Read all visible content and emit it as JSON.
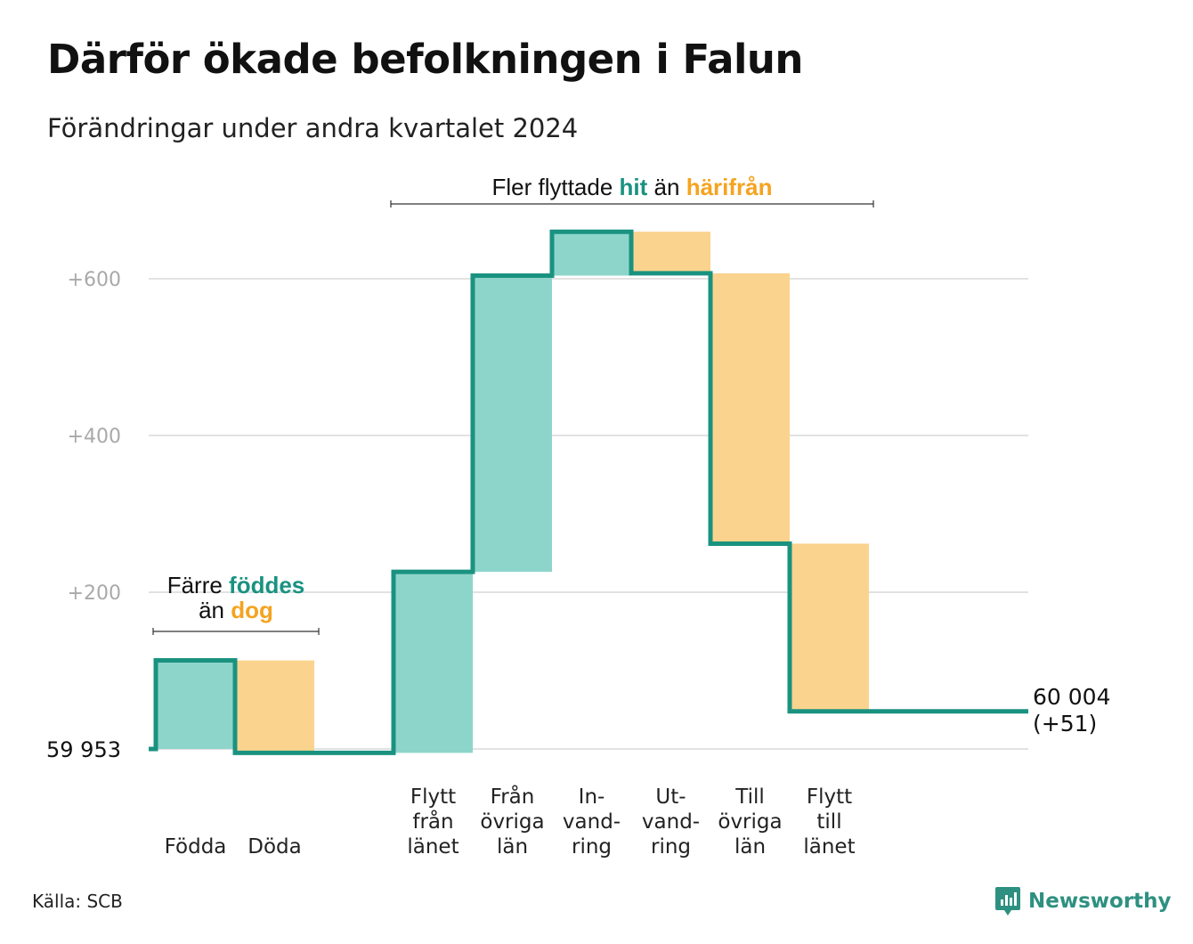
{
  "title": "Därför ökade befolkningen i Falun",
  "subtitle": "Förändringar under andra kvartalet 2024",
  "source": "Källa: SCB",
  "brand": "Newsworthy",
  "colors": {
    "increase_fill": "#8dd5cb",
    "decrease_fill": "#fad48e",
    "line": "#1a9280",
    "increase_text": "#1a9280",
    "decrease_text": "#f5a31f",
    "grid": "#e2e2e2",
    "tick": "#a9a9a9"
  },
  "chart_data": {
    "type": "waterfall",
    "baseline": 59953,
    "baseline_label": "59  953",
    "final": 60004,
    "final_label": "60 004",
    "final_change_label": "(+51)",
    "y_ticks": [
      {
        "value": 200,
        "label": "+200"
      },
      {
        "value": 400,
        "label": "+400"
      },
      {
        "value": 600,
        "label": "+600"
      }
    ],
    "ylim": [
      -20,
      700
    ],
    "grid": true,
    "steps": [
      {
        "category": "Födda",
        "label_lines": [
          "Födda"
        ],
        "change": 113,
        "kind": "increase"
      },
      {
        "category": "Döda",
        "label_lines": [
          "Döda"
        ],
        "change": -118,
        "kind": "decrease"
      },
      {
        "category": "",
        "label_lines": [],
        "change": 0,
        "kind": "gap"
      },
      {
        "category": "Flytt från länet",
        "label_lines": [
          "Flytt",
          "från",
          "länet"
        ],
        "change": 231,
        "kind": "increase"
      },
      {
        "category": "Från övriga län",
        "label_lines": [
          "Från",
          "övriga",
          "län"
        ],
        "change": 378,
        "kind": "increase"
      },
      {
        "category": "Invandring",
        "label_lines": [
          "In-",
          "vand-",
          "ring"
        ],
        "change": 56,
        "kind": "increase"
      },
      {
        "category": "Utvandring",
        "label_lines": [
          "Ut-",
          "vand-",
          "ring"
        ],
        "change": -53,
        "kind": "decrease"
      },
      {
        "category": "Till övriga län",
        "label_lines": [
          "Till",
          "övriga",
          "län"
        ],
        "change": -345,
        "kind": "decrease"
      },
      {
        "category": "Flytt till länet",
        "label_lines": [
          "Flytt",
          "till",
          "länet"
        ],
        "change": -214,
        "kind": "decrease"
      },
      {
        "category": "",
        "label_lines": [],
        "change": 0,
        "kind": "gap"
      }
    ],
    "annotations": [
      {
        "id": "birth",
        "parts_line1": [
          {
            "text": "Färre ",
            "style": "normal"
          },
          {
            "text": "föddes",
            "style": "increase"
          }
        ],
        "parts_line2": [
          {
            "text": "än ",
            "style": "normal"
          },
          {
            "text": "dog",
            "style": "decrease"
          }
        ],
        "spans_steps": [
          0,
          1
        ]
      },
      {
        "id": "migration",
        "parts_line1": [
          {
            "text": "Fler flyttade ",
            "style": "normal"
          },
          {
            "text": "hit",
            "style": "increase"
          },
          {
            "text": "  än ",
            "style": "normal"
          },
          {
            "text": "härifrån",
            "style": "decrease"
          }
        ],
        "parts_line2": [],
        "spans_steps": [
          3,
          8
        ]
      }
    ]
  }
}
